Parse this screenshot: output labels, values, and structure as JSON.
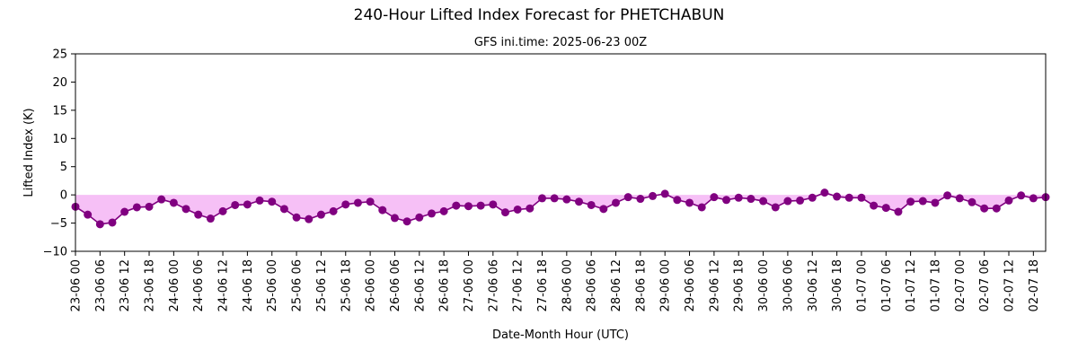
{
  "chart_data": {
    "type": "line",
    "title": "240-Hour Lifted Index Forecast for PHETCHABUN",
    "subtitle": "GFS ini.time: 2025-06-23 00Z",
    "xlabel": "Date-Month Hour (UTC)",
    "ylabel": "Lifted Index (K)",
    "ylim": [
      -10,
      25
    ],
    "yticks": [
      "25",
      "20",
      "15",
      "10",
      "5",
      "0",
      "−5",
      "−10"
    ],
    "ytick_values": [
      25,
      20,
      15,
      10,
      5,
      0,
      -5,
      -10
    ],
    "step_hours": 3,
    "xticks": [
      "23-06 00",
      "23-06 06",
      "23-06 12",
      "23-06 18",
      "24-06 00",
      "24-06 06",
      "24-06 12",
      "24-06 18",
      "25-06 00",
      "25-06 06",
      "25-06 12",
      "25-06 18",
      "26-06 00",
      "26-06 06",
      "26-06 12",
      "26-06 18",
      "27-06 00",
      "27-06 06",
      "27-06 12",
      "27-06 18",
      "28-06 00",
      "28-06 06",
      "28-06 12",
      "28-06 18",
      "29-06 00",
      "29-06 06",
      "29-06 12",
      "29-06 18",
      "30-06 00",
      "30-06 06",
      "30-06 12",
      "30-06 18",
      "01-07 00",
      "01-07 06",
      "01-07 12",
      "01-07 18",
      "02-07 00",
      "02-07 06",
      "02-07 12",
      "02-07 18"
    ],
    "values": [
      -2.1,
      -3.5,
      -5.2,
      -4.9,
      -3.0,
      -2.2,
      -2.1,
      -0.8,
      -1.4,
      -2.5,
      -3.5,
      -4.2,
      -2.9,
      -1.8,
      -1.7,
      -1.0,
      -1.2,
      -2.5,
      -4.0,
      -4.3,
      -3.5,
      -2.9,
      -1.7,
      -1.4,
      -1.2,
      -2.7,
      -4.1,
      -4.7,
      -4.0,
      -3.3,
      -2.9,
      -1.9,
      -2.0,
      -1.9,
      -1.7,
      -3.1,
      -2.6,
      -2.4,
      -0.6,
      -0.6,
      -0.8,
      -1.2,
      -1.8,
      -2.5,
      -1.4,
      -0.4,
      -0.7,
      -0.2,
      0.2,
      -0.9,
      -1.4,
      -2.2,
      -0.4,
      -0.9,
      -0.5,
      -0.7,
      -1.1,
      -2.2,
      -1.1,
      -1.0,
      -0.5,
      0.4,
      -0.3,
      -0.5,
      -0.5,
      -1.9,
      -2.3,
      -3.0,
      -1.2,
      -1.1,
      -1.4,
      -0.1,
      -0.6,
      -1.3,
      -2.4,
      -2.4,
      -1.0,
      -0.1,
      -0.6,
      -0.4
    ],
    "line_color": "#800080",
    "fill_color": "#ee82ee",
    "grid": false,
    "legend": "none"
  }
}
